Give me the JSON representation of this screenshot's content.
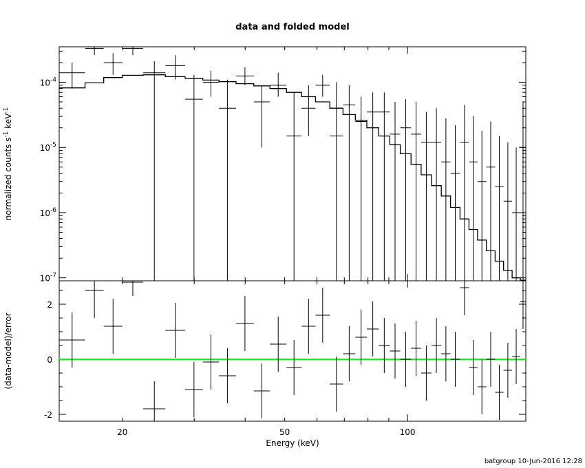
{
  "title": "data and folded model",
  "footer": "batgroup 10-Jun-2016 12:28",
  "colors": {
    "model": "#000000",
    "data": "#000000",
    "zero_line": "#00ff00"
  },
  "chart_data": [
    {
      "type": "line",
      "panel": "top",
      "title": "data and folded model",
      "xlabel": "",
      "ylabel": "normalized counts s",
      "ylabel_exp1": "-1",
      "ylabel_unit": " keV",
      "ylabel_exp2": "-1",
      "xscale": "log",
      "yscale": "log",
      "xlim": [
        14,
        195
      ],
      "ylim": [
        9e-08,
        0.00035
      ],
      "yticks": [
        {
          "v": 0.0001,
          "m": "10",
          "e": "-4"
        },
        {
          "v": 1e-05,
          "m": "10",
          "e": "-5"
        },
        {
          "v": 1e-06,
          "m": "10",
          "e": "-6"
        },
        {
          "v": 1e-07,
          "m": "10",
          "e": "-7"
        }
      ],
      "series": [
        {
          "kind": "crosses",
          "x_low": [
            14.0,
            16.2,
            18.0,
            20.0,
            22.5,
            25.5,
            28.5,
            31.5,
            34.5,
            38.0,
            42.0,
            46.0,
            50.5,
            55.0,
            59.5,
            64.5,
            69.5,
            74.5,
            79.5,
            85.0,
            90.5,
            96.0,
            102.0,
            108.0,
            114.5,
            121.0,
            127.5,
            134.5,
            141.5,
            148.5,
            156.0,
            164.0,
            172.0,
            180.5,
            189.0
          ],
          "x_high": [
            16.2,
            18.0,
            20.0,
            22.5,
            25.5,
            28.5,
            31.5,
            34.5,
            38.0,
            42.0,
            46.0,
            50.5,
            55.0,
            59.5,
            64.5,
            69.5,
            74.5,
            79.5,
            85.0,
            90.5,
            96.0,
            102.0,
            108.0,
            114.5,
            121.0,
            127.5,
            134.5,
            141.5,
            148.5,
            156.0,
            164.0,
            172.0,
            180.5,
            189.0,
            195.0
          ],
          "y": [
            0.00014,
            0.00033,
            0.0002,
            0.00033,
            0.00014,
            0.00018,
            5.5e-05,
            0.0001,
            4e-05,
            0.000125,
            5e-05,
            9e-05,
            1.5e-05,
            4e-05,
            9e-05,
            1.5e-05,
            4.5e-05,
            2.5e-05,
            3.5e-05,
            3.5e-05,
            1.6e-05,
            2e-05,
            1.6e-05,
            1.2e-05,
            1.2e-05,
            6e-06,
            4e-06,
            1.2e-05,
            6e-06,
            3e-06,
            5e-06,
            2.5e-06,
            1.5e-06,
            1e-06,
            1e-05
          ],
          "y_low": [
            8e-05,
            0.00026,
            0.00013,
            0.00026,
            9e-08,
            0.00011,
            9e-08,
            6e-05,
            9e-08,
            9e-05,
            1e-05,
            6e-05,
            9e-08,
            1.5e-05,
            6e-05,
            9e-08,
            9e-08,
            9e-08,
            9e-08,
            9e-08,
            9e-08,
            9e-08,
            9e-08,
            9e-08,
            9e-08,
            9e-08,
            9e-08,
            9e-08,
            9e-08,
            9e-08,
            9e-08,
            9e-08,
            9e-08,
            9e-08,
            9e-08
          ],
          "y_high": [
            0.0002,
            0.00035,
            0.00028,
            0.00035,
            0.00021,
            0.00026,
            0.00013,
            0.00015,
            0.00011,
            0.00017,
            9e-05,
            0.00014,
            7e-05,
            9e-05,
            0.00013,
            0.0001,
            9e-05,
            6e-05,
            7e-05,
            7e-05,
            5e-05,
            5.5e-05,
            5e-05,
            3.5e-05,
            4e-05,
            2.8e-05,
            2.2e-05,
            4.5e-05,
            3e-05,
            1.8e-05,
            2.5e-05,
            1.5e-05,
            1.2e-05,
            1e-05,
            5e-05
          ]
        },
        {
          "kind": "model-step",
          "x_edges": [
            14.0,
            16.2,
            18.0,
            20.0,
            22.5,
            25.5,
            28.5,
            31.5,
            34.5,
            38.0,
            42.0,
            46.0,
            50.5,
            55.0,
            59.5,
            64.5,
            69.5,
            74.5,
            79.5,
            85.0,
            90.5,
            96.0,
            102.0,
            108.0,
            114.5,
            121.0,
            127.5,
            134.5,
            141.5,
            148.5,
            156.0,
            164.0,
            172.0,
            180.5,
            189.0,
            195.0
          ],
          "y": [
            8.2e-05,
            9.8e-05,
            0.000118,
            0.000128,
            0.00013,
            0.000122,
            0.000115,
            0.000108,
            0.000102,
            9.5e-05,
            8.8e-05,
            8e-05,
            7e-05,
            6e-05,
            5e-05,
            4e-05,
            3.2e-05,
            2.6e-05,
            2e-05,
            1.5e-05,
            1.1e-05,
            8e-06,
            5.5e-06,
            3.8e-06,
            2.6e-06,
            1.8e-06,
            1.2e-06,
            8e-07,
            5.5e-07,
            3.8e-07,
            2.6e-07,
            1.8e-07,
            1.3e-07,
            1e-07,
            9.2e-08
          ]
        }
      ]
    },
    {
      "type": "scatter",
      "panel": "bottom",
      "xlabel": "Energy (keV)",
      "ylabel": "(data-model)/error",
      "xscale": "log",
      "xlim": [
        14,
        195
      ],
      "ylim": [
        -2.25,
        2.85
      ],
      "xticks": [
        20,
        50,
        100
      ],
      "yticks": [
        -2,
        0,
        2
      ],
      "zero_line": 0,
      "series": [
        {
          "kind": "crosses",
          "x_low": [
            14.0,
            16.2,
            18.0,
            20.0,
            22.5,
            25.5,
            28.5,
            31.5,
            34.5,
            38.0,
            42.0,
            46.0,
            50.5,
            55.0,
            59.5,
            64.5,
            69.5,
            74.5,
            79.5,
            85.0,
            90.5,
            96.0,
            102.0,
            108.0,
            114.5,
            121.0,
            127.5,
            134.5,
            141.5,
            148.5,
            156.0,
            164.0,
            172.0,
            180.5,
            189.0
          ],
          "x_high": [
            16.2,
            18.0,
            20.0,
            22.5,
            25.5,
            28.5,
            31.5,
            34.5,
            38.0,
            42.0,
            46.0,
            50.5,
            55.0,
            59.5,
            64.5,
            69.5,
            74.5,
            79.5,
            85.0,
            90.5,
            96.0,
            102.0,
            108.0,
            114.5,
            121.0,
            127.5,
            134.5,
            141.5,
            148.5,
            156.0,
            164.0,
            172.0,
            180.5,
            189.0,
            195.0
          ],
          "y": [
            0.7,
            2.5,
            1.2,
            2.8,
            -1.8,
            1.05,
            -1.1,
            -0.1,
            -0.6,
            1.3,
            -1.15,
            0.55,
            -0.3,
            1.2,
            1.6,
            -0.9,
            0.2,
            0.8,
            1.1,
            0.5,
            0.3,
            0.0,
            0.4,
            -0.5,
            0.5,
            0.2,
            0.0,
            2.6,
            -0.3,
            -1.0,
            0.0,
            -1.2,
            -0.4,
            0.1,
            2.1
          ],
          "y_low": [
            -0.3,
            1.5,
            0.2,
            2.3,
            -2.25,
            0.05,
            -2.1,
            -1.1,
            -1.6,
            0.3,
            -2.15,
            -0.45,
            -1.3,
            0.2,
            0.6,
            -1.9,
            -0.8,
            -0.2,
            0.1,
            -0.5,
            -0.7,
            -1.0,
            -0.6,
            -1.5,
            -0.5,
            -0.8,
            -1.0,
            1.6,
            -1.3,
            -2.0,
            -1.0,
            -2.2,
            -1.4,
            -0.9,
            1.1
          ],
          "y_high": [
            1.7,
            2.85,
            2.2,
            2.85,
            -0.8,
            2.05,
            -0.1,
            0.9,
            0.4,
            2.3,
            -0.15,
            1.55,
            0.7,
            2.2,
            2.6,
            0.1,
            1.2,
            1.8,
            2.1,
            1.5,
            1.3,
            1.0,
            1.4,
            0.5,
            1.5,
            1.2,
            1.0,
            2.85,
            0.7,
            0.0,
            1.0,
            -0.2,
            0.6,
            1.1,
            2.85
          ]
        }
      ]
    }
  ]
}
